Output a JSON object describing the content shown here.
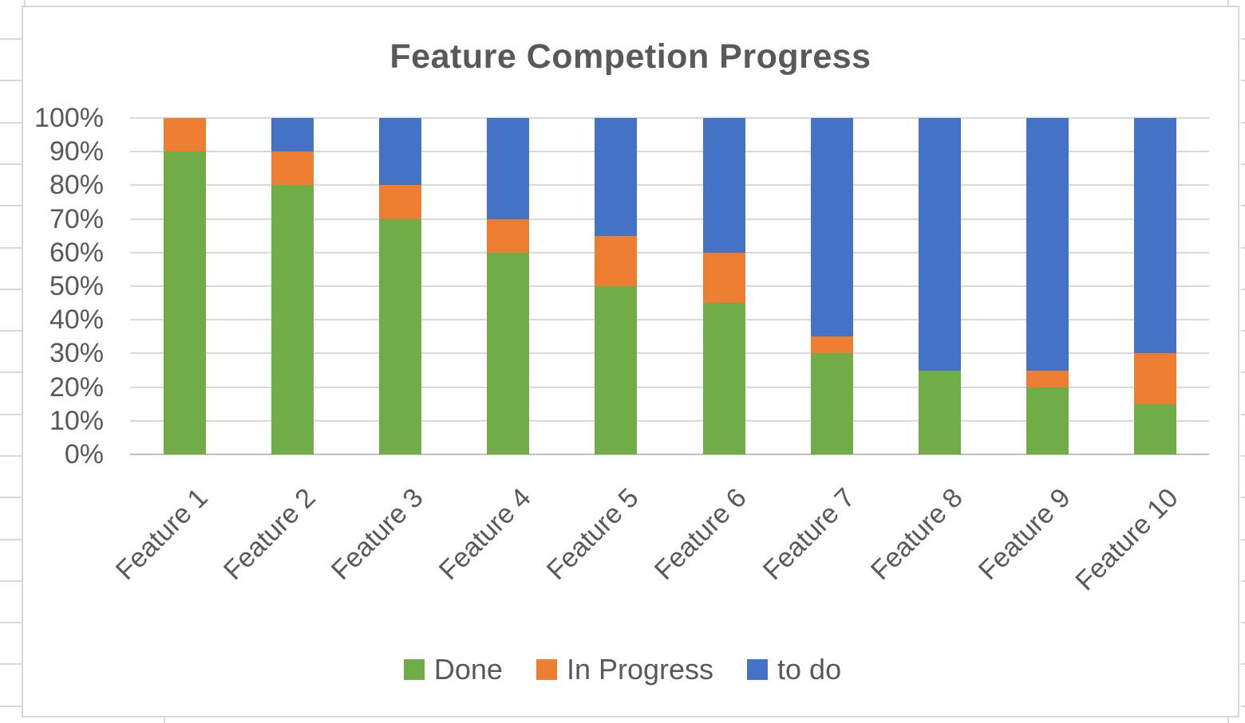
{
  "chart_data": {
    "type": "bar",
    "subtype": "stacked-100-percent-column",
    "title": "Feature Competion Progress",
    "categories": [
      "Feature 1",
      "Feature 2",
      "Feature 3",
      "Feature 4",
      "Feature 5",
      "Feature 6",
      "Feature 7",
      "Feature 8",
      "Feature 9",
      "Feature 10"
    ],
    "series": [
      {
        "name": "Done",
        "color": "#70AD47",
        "values": [
          90,
          80,
          70,
          60,
          50,
          45,
          30,
          25,
          20,
          15
        ]
      },
      {
        "name": "In Progress",
        "color": "#ED7D31",
        "values": [
          10,
          10,
          10,
          10,
          15,
          15,
          5,
          0,
          5,
          15
        ]
      },
      {
        "name": "to do",
        "color": "#4472C4",
        "values": [
          0,
          10,
          20,
          30,
          35,
          40,
          65,
          75,
          75,
          70
        ]
      }
    ],
    "y_ticks": [
      "0%",
      "10%",
      "20%",
      "30%",
      "40%",
      "50%",
      "60%",
      "70%",
      "80%",
      "90%",
      "100%"
    ],
    "ylim": [
      0,
      100
    ],
    "xlabel": "",
    "ylabel": "",
    "grid": true,
    "legend_position": "bottom"
  },
  "colors": {
    "done": "#70AD47",
    "in_progress": "#ED7D31",
    "to_do": "#4472C4",
    "text": "#595959",
    "gridline": "#D9D9D9",
    "axis_line": "#BFBFBF",
    "chart_border": "#D6D6D6"
  }
}
